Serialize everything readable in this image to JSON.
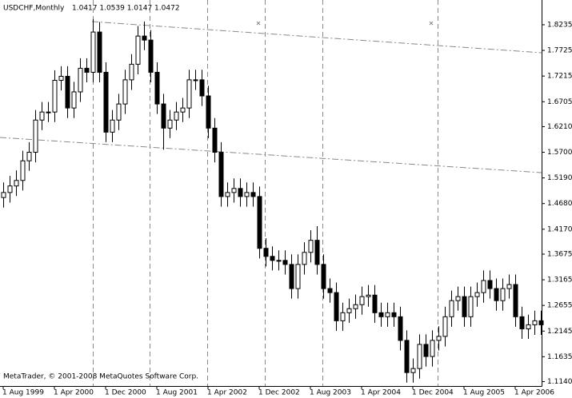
{
  "chart_data": {
    "type": "candlestick",
    "title": "USDCHF,Monthly",
    "subtitle": "1.0417 1.0539 1.0147 1.0472",
    "footer": "MetaTrader, © 2001-2008 MetaQuotes Software Corp.",
    "categories": [
      "1 Aug 1999",
      null,
      null,
      null,
      null,
      null,
      null,
      null,
      "1 Apr 2000",
      null,
      null,
      null,
      null,
      null,
      null,
      null,
      "1 Dec 2000",
      null,
      null,
      null,
      null,
      null,
      null,
      null,
      "1 Aug 2001",
      null,
      null,
      null,
      null,
      null,
      null,
      null,
      "1 Apr 2002",
      null,
      null,
      null,
      null,
      null,
      null,
      null,
      "1 Dec 2002",
      null,
      null,
      null,
      null,
      null,
      null,
      null,
      "1 Aug 2003",
      null,
      null,
      null,
      null,
      null,
      null,
      null,
      "1 Apr 2004",
      null,
      null,
      null,
      null,
      null,
      null,
      null,
      "1 Dec 2004",
      null,
      null,
      null,
      null,
      null,
      null,
      null,
      "1 Aug 2005",
      null,
      null,
      null,
      null,
      null,
      null,
      null,
      "1 Apr 2006",
      null,
      null,
      null,
      null
    ],
    "open": [
      1.48,
      1.49,
      1.503,
      1.514,
      1.553,
      1.57,
      1.634,
      1.65,
      1.65,
      1.713,
      1.721,
      1.658,
      1.69,
      1.737,
      1.729,
      1.809,
      1.729,
      1.61,
      1.634,
      1.666,
      1.714,
      1.745,
      1.801,
      1.793,
      1.729,
      1.666,
      1.618,
      1.634,
      1.65,
      1.658,
      1.714,
      1.714,
      1.682,
      1.618,
      1.57,
      1.482,
      1.49,
      1.498,
      1.482,
      1.49,
      1.482,
      1.379,
      1.363,
      1.355,
      1.355,
      1.347,
      1.299,
      1.347,
      1.371,
      1.395,
      1.347,
      1.299,
      1.291,
      1.235,
      1.251,
      1.259,
      1.267,
      1.283,
      1.286,
      1.251,
      1.243,
      1.251,
      1.243,
      1.196,
      1.132,
      1.14,
      1.188,
      1.164,
      1.196,
      1.204,
      1.243,
      1.275,
      1.283,
      1.243,
      1.283,
      1.291,
      1.315,
      1.299,
      1.275,
      1.299,
      1.307,
      1.243,
      1.219,
      1.227,
      1.235
    ],
    "high": [
      1.51,
      1.523,
      1.534,
      1.573,
      1.59,
      1.654,
      1.67,
      1.67,
      1.733,
      1.741,
      1.741,
      1.71,
      1.757,
      1.757,
      1.835,
      1.829,
      1.749,
      1.654,
      1.686,
      1.734,
      1.765,
      1.821,
      1.83,
      1.813,
      1.749,
      1.686,
      1.654,
      1.67,
      1.678,
      1.734,
      1.734,
      1.734,
      1.702,
      1.638,
      1.59,
      1.51,
      1.518,
      1.518,
      1.51,
      1.51,
      1.502,
      1.399,
      1.383,
      1.375,
      1.375,
      1.367,
      1.367,
      1.391,
      1.415,
      1.423,
      1.367,
      1.319,
      1.311,
      1.271,
      1.279,
      1.287,
      1.303,
      1.306,
      1.306,
      1.271,
      1.271,
      1.271,
      1.263,
      1.216,
      1.16,
      1.208,
      1.208,
      1.216,
      1.224,
      1.263,
      1.295,
      1.303,
      1.303,
      1.303,
      1.311,
      1.335,
      1.335,
      1.319,
      1.319,
      1.327,
      1.327,
      1.263,
      1.247,
      1.255,
      1.255
    ],
    "low": [
      1.46,
      1.47,
      1.483,
      1.494,
      1.533,
      1.55,
      1.614,
      1.63,
      1.63,
      1.693,
      1.638,
      1.638,
      1.67,
      1.709,
      1.709,
      1.709,
      1.59,
      1.59,
      1.614,
      1.646,
      1.694,
      1.725,
      1.773,
      1.709,
      1.646,
      1.575,
      1.598,
      1.614,
      1.63,
      1.638,
      1.694,
      1.662,
      1.598,
      1.55,
      1.462,
      1.462,
      1.47,
      1.462,
      1.462,
      1.462,
      1.359,
      1.343,
      1.335,
      1.335,
      1.327,
      1.279,
      1.279,
      1.327,
      1.351,
      1.327,
      1.279,
      1.271,
      1.215,
      1.215,
      1.231,
      1.239,
      1.247,
      1.263,
      1.231,
      1.223,
      1.223,
      1.223,
      1.176,
      1.112,
      1.112,
      1.12,
      1.144,
      1.144,
      1.176,
      1.184,
      1.223,
      1.255,
      1.223,
      1.223,
      1.263,
      1.271,
      1.279,
      1.255,
      1.255,
      1.279,
      1.223,
      1.199,
      1.199,
      1.207,
      1.207
    ],
    "close": [
      1.49,
      1.503,
      1.514,
      1.553,
      1.57,
      1.634,
      1.65,
      1.65,
      1.713,
      1.721,
      1.658,
      1.69,
      1.737,
      1.729,
      1.809,
      1.729,
      1.61,
      1.634,
      1.666,
      1.714,
      1.745,
      1.801,
      1.793,
      1.729,
      1.666,
      1.618,
      1.634,
      1.65,
      1.658,
      1.714,
      1.714,
      1.682,
      1.618,
      1.57,
      1.482,
      1.49,
      1.498,
      1.482,
      1.49,
      1.482,
      1.379,
      1.363,
      1.355,
      1.355,
      1.347,
      1.299,
      1.347,
      1.371,
      1.395,
      1.347,
      1.299,
      1.291,
      1.235,
      1.251,
      1.259,
      1.267,
      1.283,
      1.286,
      1.251,
      1.243,
      1.251,
      1.243,
      1.196,
      1.132,
      1.14,
      1.188,
      1.164,
      1.196,
      1.204,
      1.243,
      1.275,
      1.283,
      1.243,
      1.283,
      1.291,
      1.315,
      1.299,
      1.275,
      1.299,
      1.307,
      1.243,
      1.219,
      1.227,
      1.235,
      1.227
    ],
    "up_color": "#ffffff",
    "down_color": "#000000",
    "ylim": [
      1.1045,
      1.8727
    ],
    "yticks": [
      1.8235,
      1.7725,
      1.7215,
      1.6705,
      {
        "value": 1.621,
        "label": "1.6210"
      },
      {
        "value": 1.57,
        "label": "1.5700"
      },
      {
        "value": 1.519,
        "label": "1.5190"
      },
      {
        "value": 1.468,
        "label": "1.4680"
      },
      {
        "value": 1.417,
        "label": "1.4170"
      },
      1.3675,
      1.3165,
      1.2655,
      1.2145,
      1.1635,
      {
        "value": 1.114,
        "label": "1.1140"
      }
    ]
  }
}
